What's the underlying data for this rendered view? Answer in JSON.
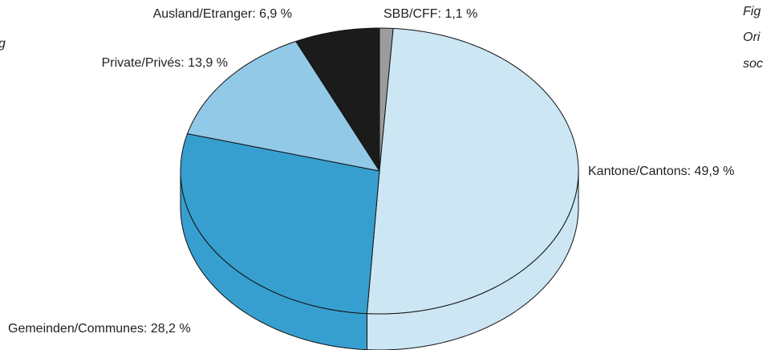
{
  "chart_data": {
    "type": "pie",
    "value_labels": [
      "SBB/CFF: 1,1 %",
      "Kantone/Cantons: 49,9 %",
      "Gemeinden/Communes: 28,2 %",
      "Private/Privés: 13,9 %",
      "Ausland/Etranger: 6,9 %"
    ],
    "values": [
      1.1,
      49.9,
      28.2,
      13.9,
      6.9
    ],
    "colors": [
      "#9a9c9e",
      "#cde6f4",
      "#379fcf",
      "#92c9e6",
      "#1b1b1b"
    ],
    "annotations": [
      "g",
      "Fig",
      "Ori",
      "soc"
    ]
  }
}
